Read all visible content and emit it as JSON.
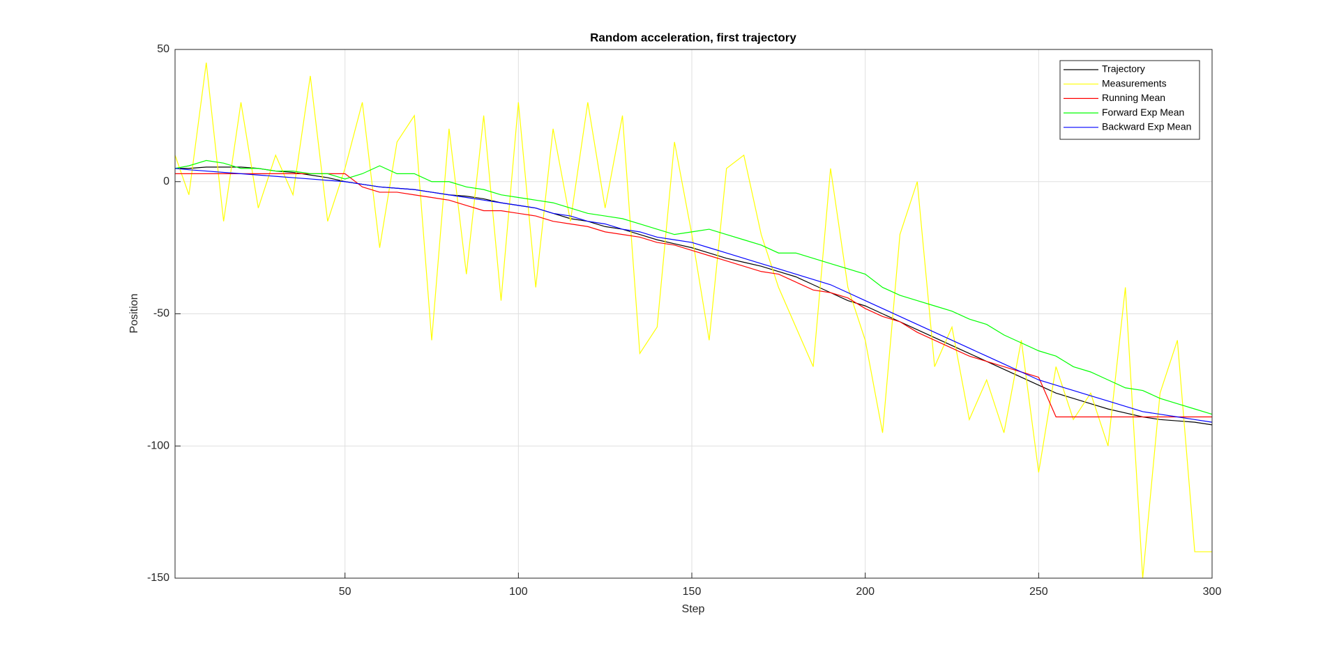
{
  "chart_data": {
    "type": "line",
    "title": "Random acceleration, first trajectory",
    "x_label": "Step",
    "y_label": "Position",
    "x": [
      1,
      5,
      10,
      15,
      20,
      25,
      30,
      35,
      40,
      45,
      50,
      55,
      60,
      65,
      70,
      75,
      80,
      85,
      90,
      95,
      100,
      105,
      110,
      115,
      120,
      125,
      130,
      135,
      140,
      145,
      150,
      155,
      160,
      165,
      170,
      175,
      180,
      185,
      190,
      195,
      200,
      205,
      210,
      215,
      220,
      225,
      230,
      235,
      240,
      245,
      250,
      255,
      260,
      265,
      270,
      275,
      280,
      285,
      290,
      295,
      300
    ],
    "series": [
      {
        "name": "Trajectory",
        "color": "#000000",
        "values": [
          5,
          5,
          5.5,
          5.5,
          5.5,
          5,
          4,
          3.5,
          2.5,
          1.5,
          0,
          -1,
          -2,
          -2.5,
          -3,
          -4,
          -5,
          -5.5,
          -6.5,
          -8,
          -9,
          -10,
          -12,
          -14,
          -15,
          -17,
          -18,
          -20,
          -22,
          -23.5,
          -25,
          -27,
          -29,
          -30.5,
          -32,
          -34,
          -36,
          -39,
          -42,
          -45,
          -47,
          -50,
          -53,
          -56,
          -59,
          -62,
          -65,
          -68,
          -71,
          -74,
          -77,
          -80,
          -82,
          -84,
          -86,
          -87.5,
          -89,
          -90,
          -90.5,
          -91,
          -92
        ]
      },
      {
        "name": "Measurements",
        "color": "#ffff00",
        "values": [
          10,
          -5,
          45,
          -15,
          30,
          -10,
          10,
          -5,
          40,
          -15,
          5,
          30,
          -25,
          15,
          25,
          -60,
          20,
          -35,
          25,
          -45,
          30,
          -40,
          20,
          -15,
          30,
          -10,
          25,
          -65,
          -55,
          15,
          -20,
          -60,
          5,
          10,
          -20,
          -40,
          -55,
          -70,
          5,
          -40,
          -60,
          -95,
          -20,
          0,
          -70,
          -55,
          -90,
          -75,
          -95,
          -60,
          -110,
          -70,
          -90,
          -80,
          -100,
          -40,
          -150,
          -80,
          -60,
          -140,
          -140
        ]
      },
      {
        "name": "Running Mean",
        "color": "#ff0000",
        "values": [
          3,
          3,
          3,
          3,
          3,
          3,
          3,
          3,
          3,
          3,
          3,
          -2,
          -4,
          -4,
          -5,
          -6,
          -7,
          -9,
          -11,
          -11,
          -12,
          -13,
          -15,
          -16,
          -17,
          -19,
          -20,
          -21,
          -23,
          -24,
          -26,
          -28,
          -30,
          -32,
          -34,
          -35,
          -38,
          -41,
          -42,
          -44,
          -48,
          -51,
          -53,
          -57,
          -60,
          -63,
          -66,
          -68,
          -70,
          -72,
          -74,
          -89,
          -89,
          -89,
          -89,
          -89,
          -89,
          -89,
          -89,
          -89,
          -89
        ]
      },
      {
        "name": "Forward Exp Mean",
        "color": "#00ff00",
        "values": [
          5,
          6,
          8,
          7,
          5,
          5,
          4,
          4,
          3,
          3,
          1,
          3,
          6,
          3,
          3,
          0,
          0,
          -2,
          -3,
          -5,
          -6,
          -7,
          -8,
          -10,
          -12,
          -13,
          -14,
          -16,
          -18,
          -20,
          -19,
          -18,
          -20,
          -22,
          -24,
          -27,
          -27,
          -29,
          -31,
          -33,
          -35,
          -40,
          -43,
          -45,
          -47,
          -49,
          -52,
          -54,
          -58,
          -61,
          -64,
          -66,
          -70,
          -72,
          -75,
          -78,
          -79,
          -82,
          -84,
          -86,
          -88
        ]
      },
      {
        "name": "Backward Exp Mean",
        "color": "#0000ff",
        "values": [
          5,
          4.5,
          4,
          3.5,
          3,
          2.5,
          2,
          1.5,
          1,
          0.5,
          0,
          -1,
          -2,
          -2.5,
          -3,
          -4,
          -5,
          -6,
          -7,
          -8,
          -9,
          -10,
          -12,
          -13,
          -15,
          -16,
          -18,
          -19,
          -21,
          -22,
          -23,
          -25,
          -27,
          -29,
          -31,
          -33,
          -35,
          -37,
          -39,
          -42,
          -45,
          -48,
          -51,
          -54,
          -57,
          -60,
          -63,
          -66,
          -69,
          -72,
          -75,
          -77,
          -79,
          -81,
          -83,
          -85,
          -87,
          -88,
          -89,
          -90,
          -91
        ]
      }
    ],
    "xlim": [
      1,
      300
    ],
    "xticks": [
      50,
      100,
      150,
      200,
      250,
      300
    ],
    "ylim": [
      -150,
      50
    ],
    "yticks": [
      -150,
      -100,
      -50,
      0,
      50
    ],
    "grid": true,
    "legend": "northeast"
  }
}
